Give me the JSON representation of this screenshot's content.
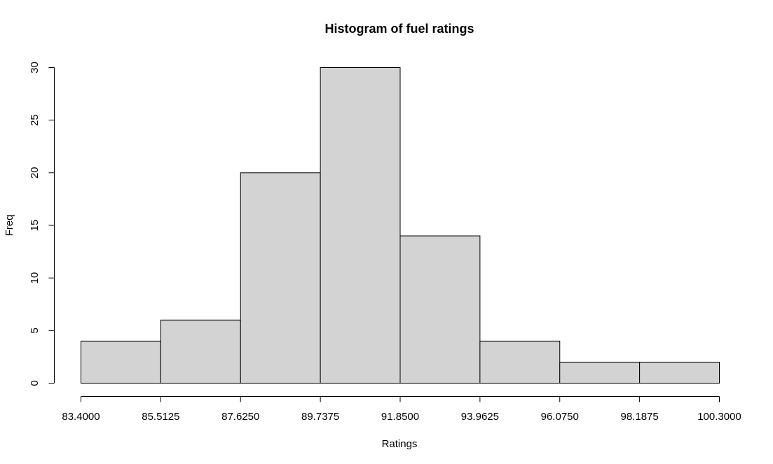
{
  "chart_data": {
    "type": "bar",
    "subtype": "histogram",
    "title": "Histogram of fuel ratings",
    "xlabel": "Ratings",
    "ylabel": "Freq",
    "bin_edges": [
      83.4,
      85.5125,
      87.625,
      89.7375,
      91.85,
      93.9625,
      96.075,
      98.1875,
      100.3
    ],
    "x_tick_labels": [
      "83.4000",
      "85.5125",
      "87.6250",
      "89.7375",
      "91.8500",
      "93.9625",
      "96.0750",
      "98.1875",
      "100.3000"
    ],
    "values": [
      4,
      6,
      20,
      30,
      14,
      4,
      2,
      2
    ],
    "y_ticks": [
      0,
      5,
      10,
      15,
      20,
      25,
      30
    ],
    "y_tick_labels": [
      "0",
      "5",
      "10",
      "15",
      "20",
      "25",
      "30"
    ],
    "xlim": [
      83.4,
      100.3
    ],
    "ylim": [
      0,
      30
    ],
    "grid": false,
    "legend": "none",
    "colors": {
      "bar_fill": "#d3d3d3",
      "bar_stroke": "#000000",
      "axis": "#000000",
      "background": "#ffffff"
    }
  }
}
